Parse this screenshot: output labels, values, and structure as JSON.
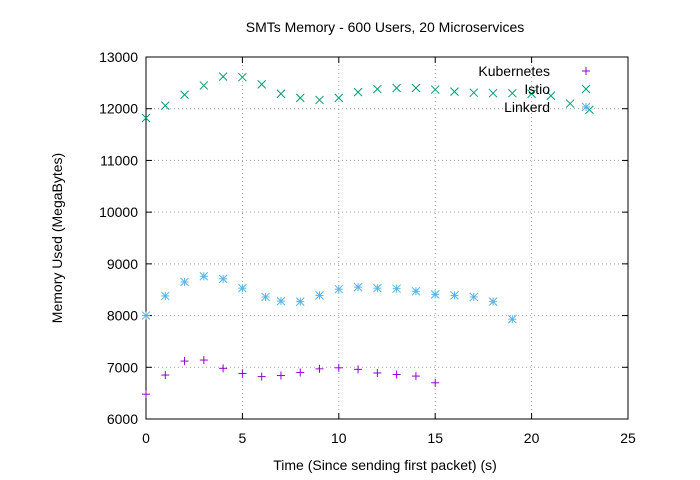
{
  "chart_data": {
    "type": "scatter",
    "title": "SMTs Memory - 600 Users, 20 Microservices",
    "xlabel": "Time (Since sending first packet) (s)",
    "ylabel": "Memory Used (MegaBytes)",
    "xlim": [
      0,
      25
    ],
    "ylim": [
      6000,
      13000
    ],
    "xticks": [
      0,
      5,
      10,
      15,
      20,
      25
    ],
    "yticks": [
      6000,
      7000,
      8000,
      9000,
      10000,
      11000,
      12000,
      13000
    ],
    "grid": true,
    "legend_position": "top-right",
    "series": [
      {
        "name": "Kubernetes",
        "marker": "plus",
        "color": "#9400d3",
        "x": [
          0,
          1,
          2,
          3,
          4,
          5,
          6,
          7,
          8,
          9,
          10,
          11,
          12,
          13,
          14,
          15
        ],
        "y": [
          6480,
          6850,
          7120,
          7140,
          6980,
          6880,
          6820,
          6840,
          6900,
          6970,
          6990,
          6960,
          6890,
          6860,
          6830,
          6700
        ]
      },
      {
        "name": "Istio",
        "marker": "x",
        "color": "#009e73",
        "x": [
          0,
          1,
          2,
          3,
          4,
          5,
          6,
          7,
          8,
          9,
          10,
          11,
          12,
          13,
          14,
          15,
          16,
          17,
          18,
          19,
          20,
          21,
          22,
          23
        ],
        "y": [
          11820,
          12060,
          12270,
          12450,
          12620,
          12610,
          12470,
          12290,
          12210,
          12170,
          12210,
          12320,
          12380,
          12400,
          12400,
          12370,
          12330,
          12310,
          12300,
          12300,
          12290,
          12250,
          12100,
          11980
        ]
      },
      {
        "name": "Linkerd",
        "marker": "star",
        "color": "#56b4e9",
        "x": [
          0,
          1,
          2,
          3,
          4,
          5,
          6.2,
          7,
          8,
          9,
          10,
          11,
          12,
          13,
          14,
          15,
          16,
          17,
          18,
          19
        ],
        "y": [
          8000,
          8380,
          8650,
          8760,
          8710,
          8530,
          8360,
          8280,
          8270,
          8390,
          8510,
          8550,
          8530,
          8520,
          8470,
          8410,
          8390,
          8360,
          8270,
          7930
        ]
      }
    ]
  }
}
